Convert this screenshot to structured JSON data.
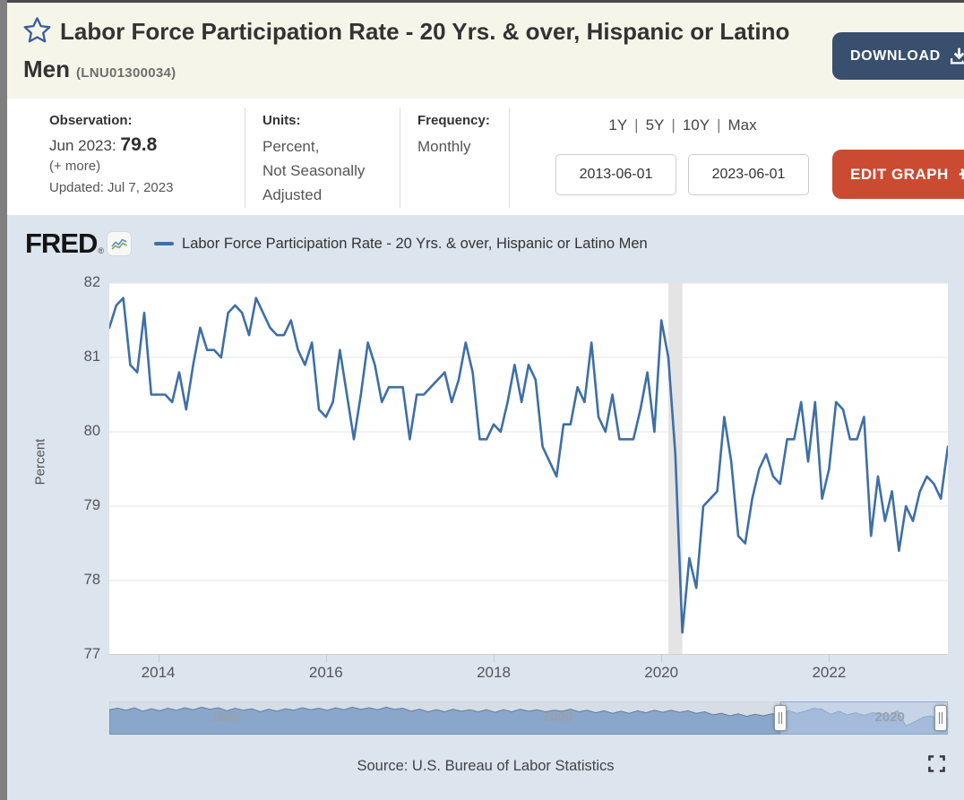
{
  "header": {
    "title": "Labor Force Participation Rate - 20 Yrs. & over, Hispanic or Latino Men",
    "series_id": "(LNU01300034)",
    "download_label": "DOWNLOAD"
  },
  "meta": {
    "observation": {
      "label": "Observation:",
      "date": "Jun 2023: ",
      "value": "79.8",
      "more": "(+ more)",
      "updated": "Updated: Jul 7, 2023"
    },
    "units": {
      "label": "Units:",
      "line1": "Percent,",
      "line2": "Not Seasonally",
      "line3": "Adjusted"
    },
    "frequency": {
      "label": "Frequency:",
      "value": "Monthly"
    }
  },
  "range": {
    "presets": [
      "1Y",
      "5Y",
      "10Y",
      "Max"
    ],
    "start_date": "2013-06-01",
    "end_date": "2023-06-01",
    "edit_graph_label": "EDIT GRAPH"
  },
  "chart": {
    "brand": "FRED",
    "legend": "Labor Force Participation Rate - 20 Yrs. & over, Hispanic or Latino Men",
    "source": "Source: U.S. Bureau of Labor Statistics"
  },
  "colors": {
    "line": "#3e6fa6",
    "edit_button": "#cb4b32",
    "download_button": "#384f6e",
    "header_background": "#f5f5e9",
    "chart_background": "#dce4ee",
    "recession_band": "#e4e4e4",
    "gridline": "#e6e6e6",
    "slider_fill": "#8aa6ca",
    "slider_stroke": "#5e80a8",
    "slider_track": "#d7dde5",
    "slider_selection": "rgba(186,204,233,0.55)",
    "slider_selection_border": "#8fa6c6"
  },
  "chart_data": {
    "type": "line",
    "title": "Labor Force Participation Rate - 20 Yrs. & over, Hispanic or Latino Men",
    "ylabel": "Percent",
    "ylim": [
      77,
      82
    ],
    "yticks": [
      82,
      81,
      80,
      79,
      78,
      77
    ],
    "x_start": "2013-06",
    "x_end": "2023-06",
    "frequency": "monthly",
    "grid": true,
    "legend_position": "top",
    "xticks": [
      {
        "label": "2014",
        "month_index": 7
      },
      {
        "label": "2016",
        "month_index": 31
      },
      {
        "label": "2018",
        "month_index": 55
      },
      {
        "label": "2020",
        "month_index": 79
      },
      {
        "label": "2022",
        "month_index": 103
      }
    ],
    "recession_band": {
      "start": "2020-02",
      "end": "2020-04",
      "start_month_index": 80,
      "end_month_index": 82
    },
    "latest": {
      "date": "Jun 2023",
      "value": 79.8
    },
    "series": [
      {
        "name": "Labor Force Participation Rate - 20 Yrs. & over, Hispanic or Latino Men",
        "values": [
          81.4,
          81.7,
          81.8,
          80.9,
          80.8,
          81.6,
          80.5,
          80.5,
          80.5,
          80.4,
          80.8,
          80.3,
          80.9,
          81.4,
          81.1,
          81.1,
          81.0,
          81.6,
          81.7,
          81.6,
          81.3,
          81.8,
          81.6,
          81.4,
          81.3,
          81.3,
          81.5,
          81.1,
          80.9,
          81.2,
          80.3,
          80.2,
          80.4,
          81.1,
          80.5,
          79.9,
          80.5,
          81.2,
          80.9,
          80.4,
          80.6,
          80.6,
          80.6,
          79.9,
          80.5,
          80.5,
          80.6,
          80.7,
          80.8,
          80.4,
          80.7,
          81.2,
          80.8,
          79.9,
          79.9,
          80.1,
          80.0,
          80.4,
          80.9,
          80.4,
          80.9,
          80.7,
          79.8,
          79.6,
          79.4,
          80.1,
          80.1,
          80.6,
          80.4,
          81.2,
          80.2,
          80.0,
          80.5,
          79.9,
          79.9,
          79.9,
          80.3,
          80.8,
          80.0,
          81.5,
          81.0,
          79.7,
          77.3,
          78.3,
          77.9,
          79.0,
          79.1,
          79.2,
          80.2,
          79.6,
          78.6,
          78.5,
          79.1,
          79.5,
          79.7,
          79.4,
          79.3,
          79.9,
          79.9,
          80.4,
          79.6,
          80.4,
          79.1,
          79.5,
          80.4,
          80.3,
          79.9,
          79.9,
          80.2,
          78.6,
          79.4,
          78.8,
          79.2,
          78.4,
          79.0,
          78.8,
          79.2,
          79.4,
          79.3,
          79.1,
          79.8
        ]
      }
    ],
    "slider": {
      "labels": [
        "1980",
        "2000",
        "2020"
      ],
      "x_start": 1973.0,
      "x_end": 2023.5,
      "step_years": 0.5,
      "values": [
        81.2,
        81.5,
        81.1,
        81.6,
        80.9,
        81.4,
        81.0,
        81.5,
        81.1,
        81.6,
        81.2,
        81.7,
        81.3,
        81.6,
        81.0,
        81.5,
        81.1,
        81.4,
        80.8,
        81.3,
        80.9,
        81.4,
        81.1,
        81.6,
        81.2,
        81.5,
        81.1,
        81.6,
        81.2,
        81.7,
        81.3,
        81.6,
        81.2,
        81.7,
        81.3,
        81.5,
        80.9,
        81.3,
        80.8,
        81.2,
        80.8,
        81.3,
        80.9,
        81.2,
        80.8,
        81.2,
        80.7,
        81.2,
        80.8,
        81.3,
        80.9,
        81.2,
        80.8,
        81.1,
        80.9,
        81.3,
        80.8,
        81.1,
        80.6,
        81.0,
        80.5,
        80.9,
        80.5,
        81.0,
        80.6,
        81.1,
        80.7,
        81.1,
        80.7,
        81.0,
        80.5,
        80.8,
        80.2,
        80.5,
        80.0,
        80.4,
        79.9,
        80.3,
        80.0,
        80.4,
        80.1,
        81.0,
        80.5,
        80.9,
        81.5,
        81.3,
        80.3,
        80.9,
        80.2,
        80.6,
        80.1,
        80.6,
        80.4,
        80.0,
        81.0,
        78.0,
        78.8,
        79.7,
        80.0,
        79.2,
        79.4
      ]
    }
  }
}
